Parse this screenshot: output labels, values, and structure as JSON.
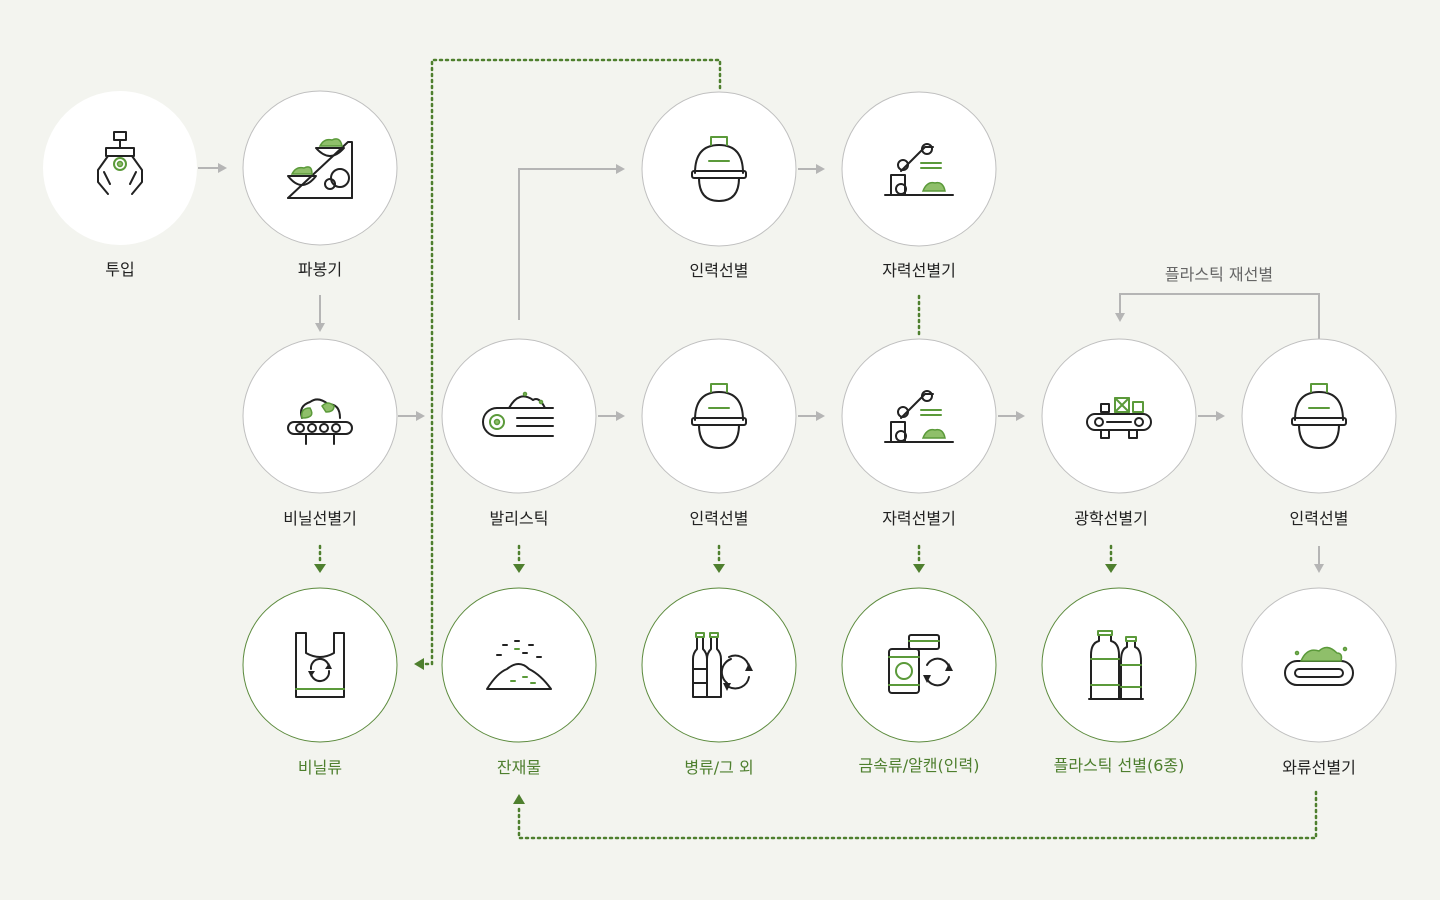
{
  "colors": {
    "background": "#f3f4ef",
    "accent_green": "#4e7f2e",
    "neutral_line": "#b5b5b5",
    "circle_border": "#bfbfbf"
  },
  "nodes": {
    "input": {
      "label": "투입",
      "icon": "claw-grabber-icon"
    },
    "bag_opener": {
      "label": "파봉기",
      "icon": "bag-opener-machine-icon"
    },
    "vinyl_sorter": {
      "label": "비닐선별기",
      "icon": "conveyor-sorter-icon"
    },
    "ballistic": {
      "label": "발리스틱",
      "icon": "ballistic-separator-icon"
    },
    "manual_sort_top": {
      "label": "인력선별",
      "icon": "worker-helmet-icon"
    },
    "magnetic_sort_top": {
      "label": "자력선별기",
      "icon": "robot-arm-magnet-icon"
    },
    "manual_sort_mid": {
      "label": "인력선별",
      "icon": "worker-helmet-icon"
    },
    "magnetic_sort_mid": {
      "label": "자력선별기",
      "icon": "robot-arm-magnet-icon"
    },
    "optical_sort": {
      "label": "광학선별기",
      "icon": "optical-conveyor-icon"
    },
    "manual_sort_right": {
      "label": "인력선별",
      "icon": "worker-helmet-icon"
    },
    "vinyl_output": {
      "label": "비닐류",
      "icon": "plastic-bag-recycle-icon"
    },
    "residue_output": {
      "label": "잔재물",
      "icon": "residue-pile-icon"
    },
    "bottle_output": {
      "label": "병류/그 외",
      "icon": "bottles-recycle-icon"
    },
    "metal_output": {
      "label": "금속류/알캔(인력)",
      "icon": "cans-recycle-icon"
    },
    "plastic_output": {
      "label": "플라스틱 선별(6종)",
      "icon": "plastic-bottles-icon"
    },
    "vortex_sorter": {
      "label": "와류선별기",
      "icon": "eddy-current-conveyor-icon"
    }
  },
  "annotations": {
    "plastic_resort": "플라스틱 재선별"
  }
}
